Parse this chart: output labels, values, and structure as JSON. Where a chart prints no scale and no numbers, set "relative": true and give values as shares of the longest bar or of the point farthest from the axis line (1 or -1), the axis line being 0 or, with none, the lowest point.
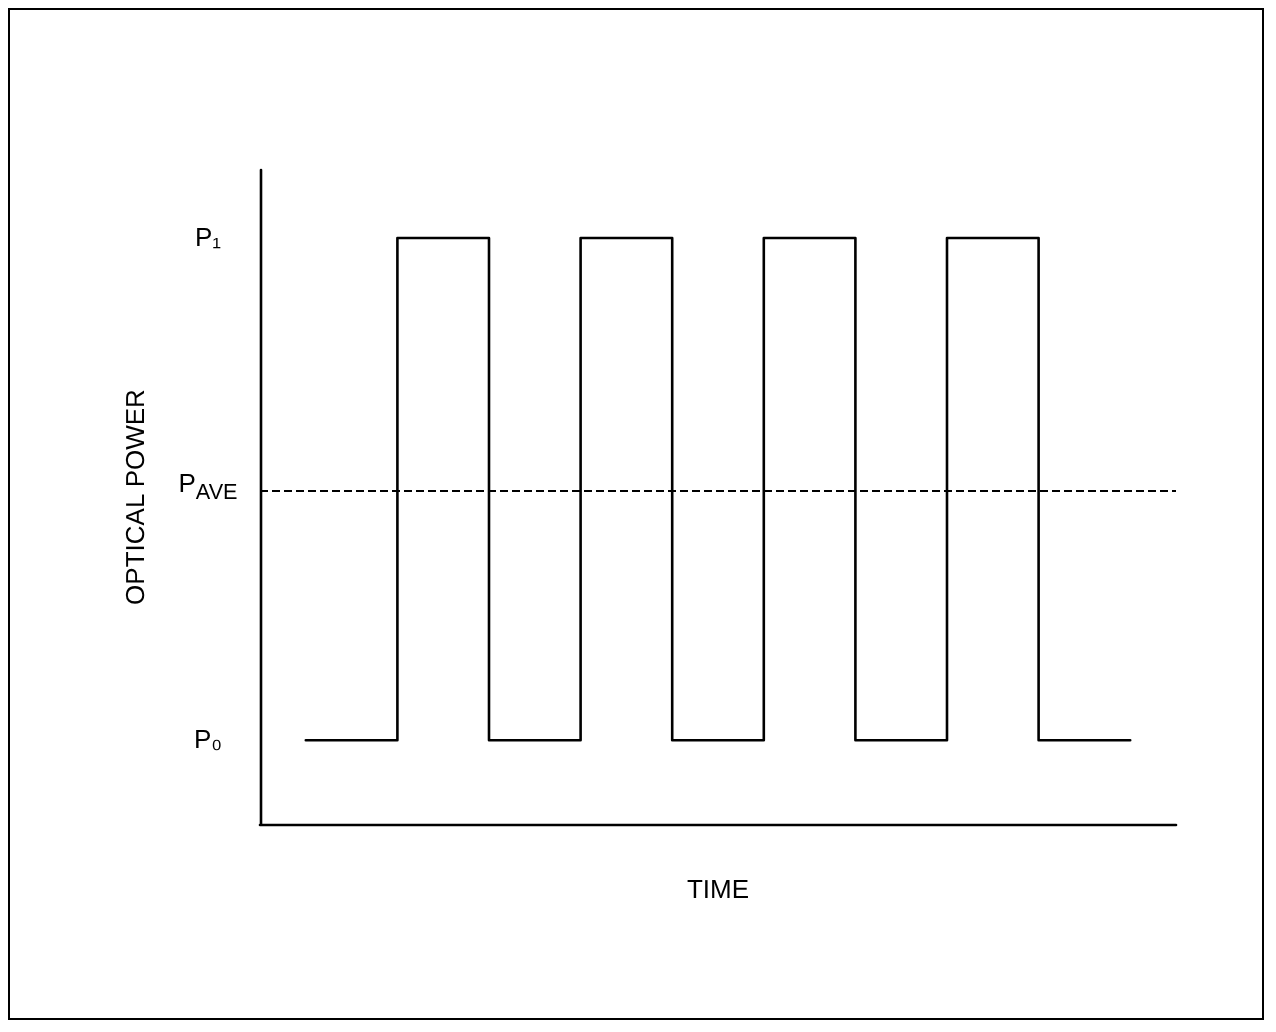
{
  "chart_data": {
    "type": "step",
    "relative": true,
    "xlabel": "TIME",
    "ylabel": "OPTICAL POWER",
    "categories": [
      null,
      null,
      null,
      null,
      null,
      null,
      null,
      null,
      null,
      null
    ],
    "series": [
      {
        "color": "#000000",
        "values": [
          0.143,
          1,
          0.143,
          1,
          0.143,
          1,
          0.143,
          1,
          0.143,
          0.143
        ]
      }
    ],
    "ref_lines": [
      {
        "axis": "y",
        "value": 0.573,
        "label": "P$_{AVE}$",
        "line_style": "dashed",
        "color": "#000000"
      }
    ],
    "annotations": [
      "P₁",
      "P₀"
    ],
    "grid": false,
    "marker": "none",
    "line_style": "solid"
  }
}
